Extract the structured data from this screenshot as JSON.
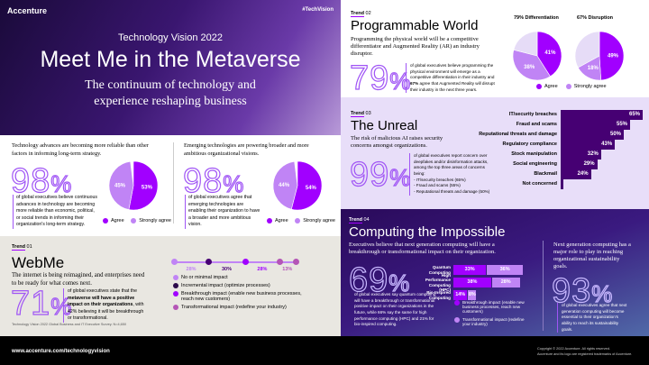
{
  "header": {
    "logo": "Accenture",
    "hashtag": "#TechVision",
    "kicker": "Technology Vision 2022",
    "title": "Meet Me in the Metaverse",
    "subtitle": "The continuum of technology and experience reshaping business"
  },
  "stat1": {
    "heading": "Technology advances are becoming more reliable than other factors in informing long-term strategy.",
    "big": "98",
    "pct": "%",
    "text": "of global executives believe continuous advances in technology are becoming more reliable than economic, political, or social trends in informing their organization's long-term strategy.",
    "pie": [
      {
        "label": "53%",
        "value": 53,
        "color": "#a100ff"
      },
      {
        "label": "45%",
        "value": 45,
        "color": "#c084f5"
      }
    ]
  },
  "stat2": {
    "heading": "Emerging technologies are powering broader and more ambitious organizational visions.",
    "big": "98",
    "pct": "%",
    "text": "of global executives agree that emerging technologies are enabling their organization to have a broader and more ambitious vision.",
    "pie": [
      {
        "label": "54%",
        "value": 54,
        "color": "#a100ff"
      },
      {
        "label": "44%",
        "value": 44,
        "color": "#c084f5"
      }
    ]
  },
  "legend": {
    "agree": "Agree",
    "strongly": "Strongly agree",
    "agree_color": "#a100ff",
    "strongly_color": "#c084f5"
  },
  "webme": {
    "trend": "Trend",
    "num": "01",
    "title": "WebMe",
    "subtitle": "The internet is being reimagined, and enterprises need to be ready for what comes next.",
    "big": "71",
    "pct": "%",
    "text_pre": "of global executives state that the ",
    "text_bold": "metaverse will have a positive impact on their organizations",
    "text_post": ", with 42% believing it will be breakthrough or transformational.",
    "source": "Technology Vision 2022 Global Business and IT Executive Survey. N=4,650",
    "scale": [
      {
        "value": "28%",
        "color": "#c084f5"
      },
      {
        "value": "30%",
        "color": "#460073"
      },
      {
        "value": "28%",
        "color": "#a100ff"
      },
      {
        "value": "13%",
        "color": "#b455b6"
      }
    ],
    "legend": [
      {
        "label": "No or minimal impact",
        "color": "#c084f5"
      },
      {
        "label": "Incremental impact (optimize processes)",
        "color": "#2b0a4a"
      },
      {
        "label": "Breakthrough impact (enable new business processes, reach new customers)",
        "color": "#a100ff"
      },
      {
        "label": "Transformational impact (redefine your industry)",
        "color": "#b455b6"
      }
    ]
  },
  "footer": {
    "url": "www.accenture.com/technologyvision",
    "copyright": "Copyright © 2022 Accenture. All rights reserved.",
    "trademark": "Accenture and its logo are registered trademarks of Accenture."
  },
  "programmable": {
    "trend": "Trend",
    "num": "02",
    "title": "Programmable World",
    "subtitle": "Programming the physical world will be a competitive differentiator and Augmented Reality (AR) an industry disruptor.",
    "big": "79",
    "pct": "%",
    "text_a": "of global executives believe programming the physical environment will emerge as a competitive differentiation in their industry and ",
    "text_b": "67%",
    "text_c": " agree that Augmented Reality will disrupt their industry in the next three years.",
    "pies": [
      {
        "title": "79% Differentiation",
        "slices": [
          {
            "label": "41%",
            "value": 41,
            "color": "#a100ff"
          },
          {
            "label": "38%",
            "value": 38,
            "color": "#c084f5"
          },
          {
            "label": "",
            "value": 21,
            "color": "#e6dcf7"
          }
        ]
      },
      {
        "title": "67% Disruption",
        "slices": [
          {
            "label": "49%",
            "value": 49,
            "color": "#a100ff"
          },
          {
            "label": "18%",
            "value": 18,
            "color": "#c084f5"
          },
          {
            "label": "",
            "value": 33,
            "color": "#e6dcf7"
          }
        ]
      }
    ]
  },
  "unreal": {
    "trend": "Trend",
    "num": "03",
    "title": "The Unreal",
    "subtitle": "The risk of malicious AI raises security concerns amongst organizations.",
    "big": "99",
    "pct": "%",
    "text": "of global executives report concern over deepfakes and/or disinformation attacks, among the top three areas of concerns being:",
    "bullets": [
      "- IT/security breaches (65%)",
      "- Fraud and scams (55%)",
      "- Reputational threats and damage (50%)"
    ],
    "bars": [
      {
        "label": "IT/security breaches",
        "value": 65,
        "text": "65%"
      },
      {
        "label": "Fraud and scams",
        "value": 55,
        "text": "55%"
      },
      {
        "label": "Reputational threats and damage",
        "value": 50,
        "text": "50%"
      },
      {
        "label": "Regulatory compliance",
        "value": 43,
        "text": "43%"
      },
      {
        "label": "Stock manipulation",
        "value": 32,
        "text": "32%"
      },
      {
        "label": "Social engineering",
        "value": 29,
        "text": "29%"
      },
      {
        "label": "Blackmail",
        "value": 24,
        "text": "24%"
      },
      {
        "label": "Not concerned",
        "value": 1,
        "text": ""
      }
    ]
  },
  "computing": {
    "trend": "Trend",
    "num": "04",
    "title": "Computing the Impossible",
    "subtitle": "Executives believe that next generation computing will have a breakthrough or transformational impact on their organization.",
    "big": "69",
    "pct": "%",
    "text": "of global executives say quantum computing will have a breakthrough or transformational positive impact on their organizations in the future, while 66% say the same for high performance computing (HPC) and 21% for bio-inspired computing.",
    "bars": [
      {
        "label": "Quantum Computing",
        "a": 33,
        "b": 36
      },
      {
        "label": "High Performance Computing (HPC)",
        "a": 38,
        "b": 28
      },
      {
        "label": "Bio-Inspired Computing",
        "a": 14,
        "b": 8
      }
    ],
    "legend": [
      {
        "label": "Breakthrough impact (enable new business processes, reach new customers)",
        "color": "#a100ff"
      },
      {
        "label": "Transformational impact (redefine your industry)",
        "color": "#c084f5"
      }
    ],
    "side_heading": "Next generation computing has a major role to play in reaching organizational sustainability goals.",
    "side_big": "93",
    "side_pct": "%",
    "side_text": "of global executives agree that next generation computing will become essential to their organization's ability to reach its sustainability goals."
  }
}
